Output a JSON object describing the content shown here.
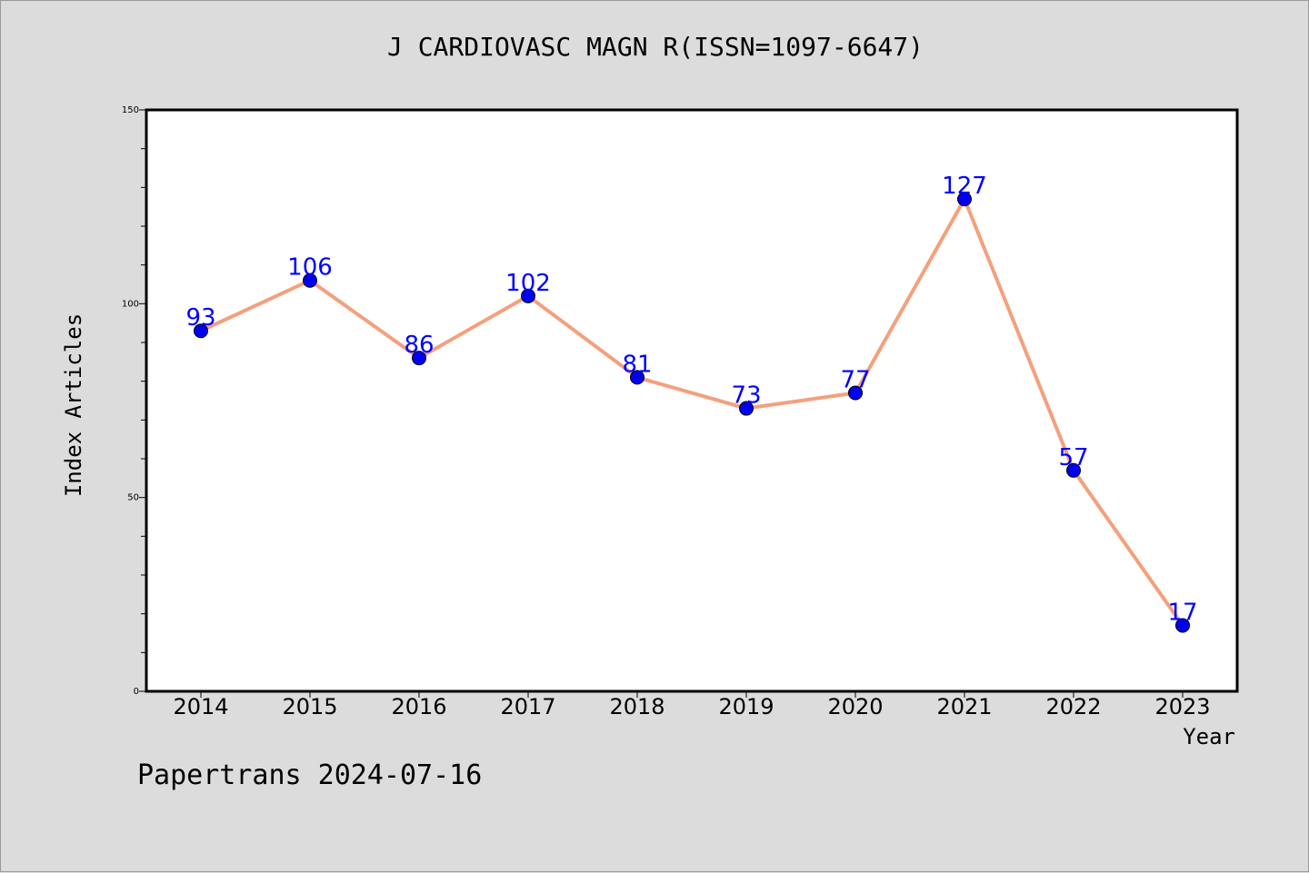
{
  "chart_data": {
    "type": "line",
    "title": "J CARDIOVASC MAGN R(ISSN=1097-6647)",
    "xlabel": "Year",
    "ylabel": "Index Articles",
    "categories": [
      "2014",
      "2015",
      "2016",
      "2017",
      "2018",
      "2019",
      "2020",
      "2021",
      "2022",
      "2023"
    ],
    "values": [
      93,
      106,
      86,
      102,
      81,
      73,
      77,
      127,
      57,
      17
    ],
    "ylim": [
      0,
      150
    ],
    "yticks": [
      0,
      50,
      100,
      150
    ],
    "grid": false,
    "legend": "none",
    "line_color": "#f4a07c",
    "marker_color": "#0000ee",
    "label_color": "#0000ff"
  },
  "footer": "Papertrans 2024-07-16"
}
